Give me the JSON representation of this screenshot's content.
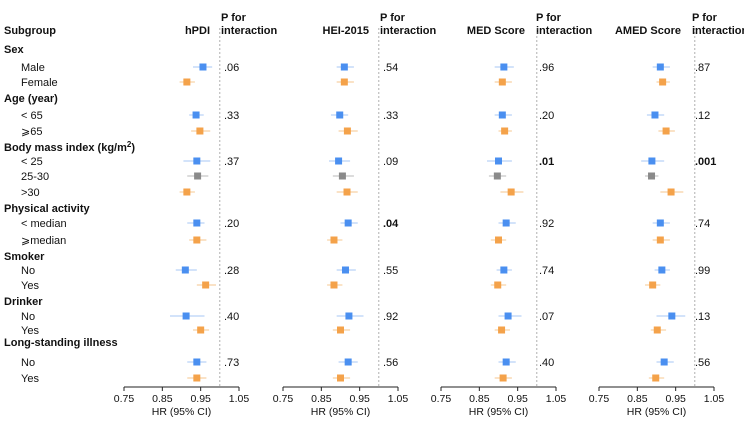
{
  "headers": {
    "subgroup": "Subgroup",
    "p_line1": "P for",
    "p_line2": "interaction",
    "panels": [
      "hPDI",
      "HEI-2015",
      "MED Score",
      "AMED Score"
    ]
  },
  "axis_label": "HR (95% CI)",
  "colors": {
    "blue": "#4a8ff0",
    "orange": "#f4a24a",
    "gray": "#8a8a8a",
    "blue_ci": "#b9d2f6",
    "orange_ci": "#f8d1a4",
    "gray_ci": "#c6c6c6"
  },
  "rows": [
    {
      "label": "Sex",
      "kind": "group"
    },
    {
      "label": "Male",
      "kind": "item",
      "color": "blue"
    },
    {
      "label": "Female",
      "kind": "item",
      "color": "orange"
    },
    {
      "label": "Age (year)",
      "kind": "group"
    },
    {
      "label": "< 65",
      "kind": "item",
      "color": "blue"
    },
    {
      "label": "⩾65",
      "kind": "item",
      "color": "orange"
    },
    {
      "label": "Body mass index (kg/m",
      "sup": "2",
      "suffix": ")",
      "kind": "group"
    },
    {
      "label": "< 25",
      "kind": "item",
      "color": "blue"
    },
    {
      "label": "25-30",
      "kind": "item",
      "color": "gray"
    },
    {
      "label": ">30",
      "kind": "item",
      "color": "orange"
    },
    {
      "label": "Physical activity",
      "kind": "group"
    },
    {
      "label": "< median",
      "kind": "item",
      "color": "blue"
    },
    {
      "label": "⩾median",
      "kind": "item",
      "color": "orange"
    },
    {
      "label": "Smoker",
      "kind": "group"
    },
    {
      "label": "No",
      "kind": "item",
      "color": "blue"
    },
    {
      "label": "Yes",
      "kind": "item",
      "color": "orange"
    },
    {
      "label": "Drinker",
      "kind": "group"
    },
    {
      "label": "No",
      "kind": "item",
      "color": "blue"
    },
    {
      "label": "Yes",
      "kind": "item",
      "color": "orange"
    },
    {
      "label": "Long-standing illness",
      "kind": "group"
    },
    {
      "label": "No",
      "kind": "item",
      "color": "blue"
    },
    {
      "label": "Yes",
      "kind": "item",
      "color": "orange"
    }
  ],
  "chart_data": {
    "type": "forest",
    "xlabel": "HR (95% CI)",
    "xlim": [
      0.75,
      1.05
    ],
    "ticks": [
      "0.75",
      "0.85",
      "0.95",
      "1.05"
    ],
    "reference_line": 1.0,
    "panels": [
      {
        "name": "hPDI",
        "p_values": [
          ".06",
          ".33",
          ".37",
          ".20",
          ".28",
          ".40",
          ".73"
        ],
        "p_bold": [
          false,
          false,
          false,
          false,
          false,
          false,
          false
        ],
        "estimates": [
          [
            0.956,
            0.93,
            0.98
          ],
          [
            0.914,
            0.895,
            0.935
          ],
          [
            0.938,
            0.92,
            0.958
          ],
          [
            0.948,
            0.925,
            0.975
          ],
          [
            0.94,
            0.905,
            0.975
          ],
          [
            0.942,
            0.915,
            0.97
          ],
          [
            0.914,
            0.895,
            0.935
          ],
          [
            0.94,
            0.915,
            0.96
          ],
          [
            0.94,
            0.92,
            0.965
          ],
          [
            0.91,
            0.885,
            0.94
          ],
          [
            0.963,
            0.94,
            0.99
          ],
          [
            0.912,
            0.87,
            0.96
          ],
          [
            0.95,
            0.93,
            0.972
          ],
          [
            0.94,
            0.915,
            0.965
          ],
          [
            0.94,
            0.915,
            0.965
          ]
        ]
      },
      {
        "name": "HEI-2015",
        "p_values": [
          ".54",
          ".33",
          ".09",
          ".04",
          ".55",
          ".92",
          ".56"
        ],
        "p_bold": [
          false,
          false,
          false,
          true,
          false,
          false,
          false
        ],
        "estimates": [
          [
            0.91,
            0.89,
            0.935
          ],
          [
            0.91,
            0.89,
            0.935
          ],
          [
            0.898,
            0.875,
            0.92
          ],
          [
            0.918,
            0.895,
            0.945
          ],
          [
            0.895,
            0.87,
            0.925
          ],
          [
            0.905,
            0.88,
            0.935
          ],
          [
            0.917,
            0.89,
            0.945
          ],
          [
            0.92,
            0.9,
            0.945
          ],
          [
            0.883,
            0.865,
            0.905
          ],
          [
            0.913,
            0.89,
            0.94
          ],
          [
            0.883,
            0.865,
            0.905
          ],
          [
            0.922,
            0.89,
            0.96
          ],
          [
            0.9,
            0.88,
            0.925
          ],
          [
            0.92,
            0.895,
            0.945
          ],
          [
            0.9,
            0.88,
            0.925
          ]
        ]
      },
      {
        "name": "MED Score",
        "p_values": [
          ".96",
          ".20",
          ".01",
          ".92",
          ".74",
          ".07",
          ".40"
        ],
        "p_bold": [
          false,
          false,
          true,
          false,
          false,
          false,
          false
        ],
        "estimates": [
          [
            0.914,
            0.89,
            0.94
          ],
          [
            0.91,
            0.89,
            0.935
          ],
          [
            0.91,
            0.89,
            0.935
          ],
          [
            0.916,
            0.9,
            0.935
          ],
          [
            0.9,
            0.87,
            0.935
          ],
          [
            0.897,
            0.875,
            0.92
          ],
          [
            0.933,
            0.905,
            0.965
          ],
          [
            0.92,
            0.9,
            0.945
          ],
          [
            0.9,
            0.88,
            0.92
          ],
          [
            0.914,
            0.895,
            0.935
          ],
          [
            0.898,
            0.88,
            0.92
          ],
          [
            0.925,
            0.9,
            0.96
          ],
          [
            0.908,
            0.89,
            0.93
          ],
          [
            0.92,
            0.9,
            0.945
          ],
          [
            0.912,
            0.89,
            0.935
          ]
        ]
      },
      {
        "name": "AMED Score",
        "p_values": [
          ".87",
          ".12",
          ".001",
          ".74",
          ".99",
          ".13",
          ".56"
        ],
        "p_bold": [
          false,
          false,
          true,
          false,
          false,
          false,
          false
        ],
        "estimates": [
          [
            0.91,
            0.89,
            0.935
          ],
          [
            0.916,
            0.9,
            0.935
          ],
          [
            0.896,
            0.875,
            0.92
          ],
          [
            0.925,
            0.905,
            0.948
          ],
          [
            0.888,
            0.86,
            0.92
          ],
          [
            0.887,
            0.87,
            0.905
          ],
          [
            0.938,
            0.91,
            0.97
          ],
          [
            0.91,
            0.89,
            0.935
          ],
          [
            0.91,
            0.89,
            0.935
          ],
          [
            0.914,
            0.895,
            0.935
          ],
          [
            0.89,
            0.87,
            0.91
          ],
          [
            0.94,
            0.9,
            0.975
          ],
          [
            0.902,
            0.885,
            0.925
          ],
          [
            0.92,
            0.9,
            0.945
          ],
          [
            0.898,
            0.88,
            0.92
          ]
        ]
      }
    ]
  }
}
